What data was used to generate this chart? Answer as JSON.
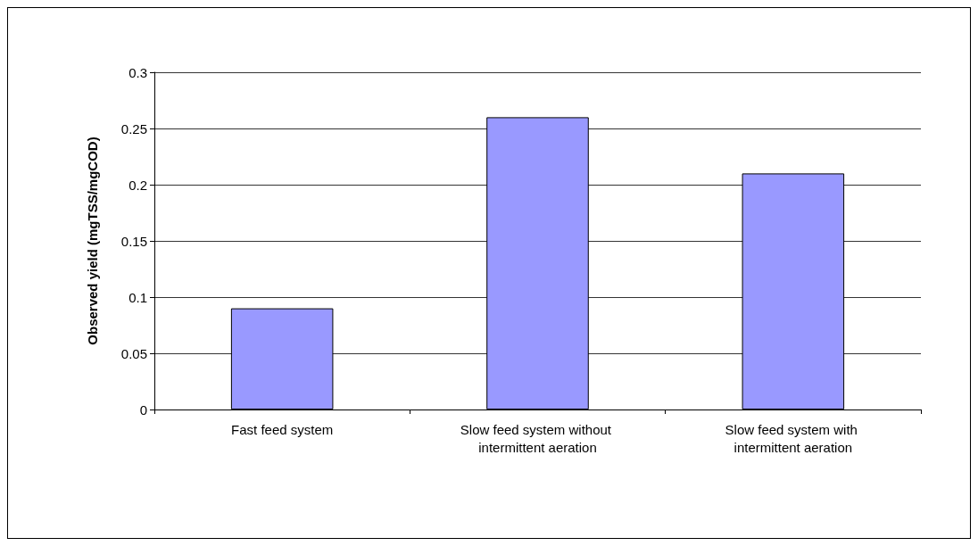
{
  "chart_data": {
    "type": "bar",
    "ylabel": "Observed yield (mgTSS/mgCOD)",
    "categories": [
      "Fast feed system",
      "Slow feed system without intermittent aeration",
      "Slow feed system with intermittent aeration"
    ],
    "values": [
      0.09,
      0.26,
      0.21
    ],
    "color": "#9999ff",
    "ylim": [
      0,
      0.3
    ],
    "yticks": [
      0,
      0.05,
      0.1,
      0.15,
      0.2,
      0.25,
      0.3
    ],
    "grid": "y"
  }
}
